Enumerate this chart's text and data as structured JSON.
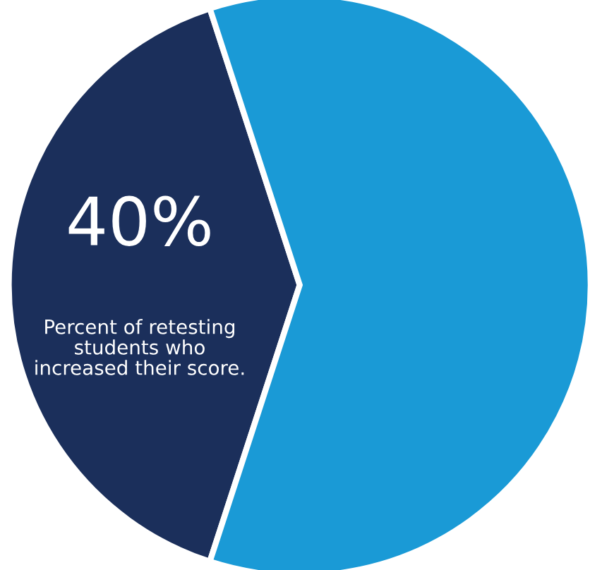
{
  "chart_data": {
    "type": "pie",
    "categories": [
      null,
      null
    ],
    "values": [
      40,
      60
    ],
    "colors": [
      "#1b2f5b",
      "#1a9ad6"
    ],
    "value_labels": [
      "40%",
      null
    ],
    "annotations": [
      "Percent of retesting students who increased their score."
    ],
    "legend": false
  }
}
